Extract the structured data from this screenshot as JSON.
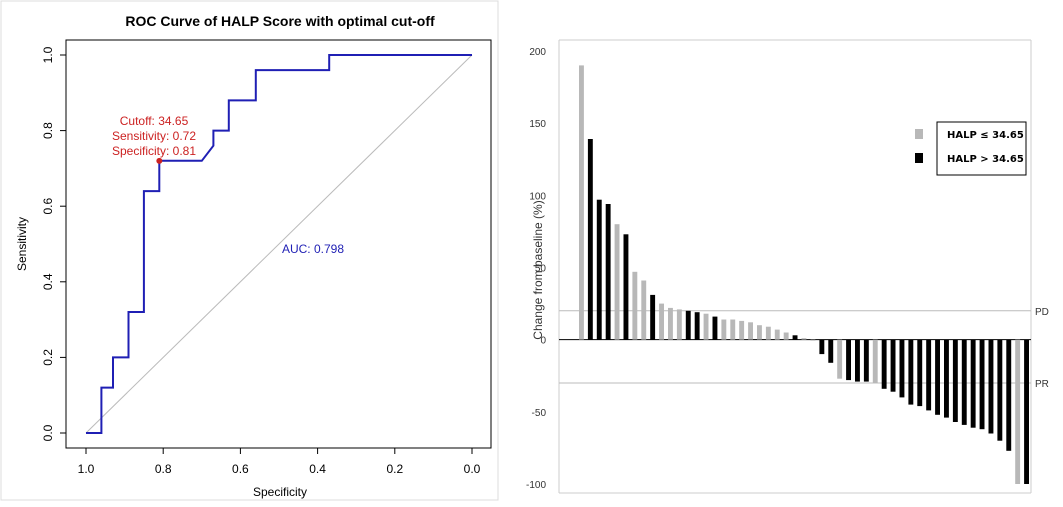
{
  "chart_data": [
    {
      "type": "line",
      "title": "ROC Curve of HALP Score with optimal cut-off",
      "xlabel": "Specificity",
      "ylabel": "Sensitivity",
      "xlim": [
        1.0,
        0.0
      ],
      "ylim": [
        0.0,
        1.0
      ],
      "x_reversed": true,
      "x_ticks": [
        "1.0",
        "0.8",
        "0.6",
        "0.4",
        "0.2",
        "0.0"
      ],
      "y_ticks": [
        "0.0",
        "0.2",
        "0.4",
        "0.6",
        "0.8",
        "1.0"
      ],
      "grid": false,
      "series": [
        {
          "color": "#1f1fb4",
          "specificity": [
            1.0,
            0.96,
            0.96,
            0.93,
            0.93,
            0.89,
            0.89,
            0.85,
            0.85,
            0.81,
            0.81,
            0.7,
            0.67,
            0.67,
            0.63,
            0.63,
            0.56,
            0.56,
            0.37,
            0.37,
            0.0
          ],
          "sensitivity": [
            0.0,
            0.0,
            0.12,
            0.12,
            0.2,
            0.2,
            0.32,
            0.32,
            0.64,
            0.64,
            0.72,
            0.72,
            0.76,
            0.8,
            0.8,
            0.88,
            0.88,
            0.96,
            0.96,
            1.0,
            1.0
          ]
        }
      ],
      "reference_line": {
        "from": [
          1.0,
          0.0
        ],
        "to": [
          0.0,
          1.0
        ],
        "color": "#bbbbbb"
      },
      "optimal_point": {
        "specificity": 0.81,
        "sensitivity": 0.72,
        "color": "#cc2222"
      },
      "annotations": {
        "cutoff": "Cutoff: 34.65",
        "sensitivity": "Sensitivity: 0.72",
        "specificity": "Specificity: 0.81",
        "auc": "AUC: 0.798"
      }
    },
    {
      "type": "bar",
      "title": "",
      "xlabel": "",
      "ylabel": "Change from baseline (%)",
      "ylim": [
        -100,
        200
      ],
      "y_ticks": [
        200,
        150,
        100,
        50,
        0,
        -50,
        -100
      ],
      "grid": false,
      "legend": {
        "placement": "top-right",
        "entries": [
          {
            "label": "HALP ≤ 34.65",
            "color": "#b8b8b8"
          },
          {
            "label": "HALP > 34.65",
            "color": "#000000"
          }
        ]
      },
      "reference_lines": [
        {
          "label": "PD",
          "value": 20
        },
        {
          "label": "PR",
          "value": -30
        }
      ],
      "bars": [
        {
          "value": 190,
          "group": "low"
        },
        {
          "value": 139,
          "group": "high"
        },
        {
          "value": 97,
          "group": "high"
        },
        {
          "value": 94,
          "group": "high"
        },
        {
          "value": 80,
          "group": "low"
        },
        {
          "value": 73,
          "group": "high"
        },
        {
          "value": 47,
          "group": "low"
        },
        {
          "value": 41,
          "group": "low"
        },
        {
          "value": 31,
          "group": "high"
        },
        {
          "value": 25,
          "group": "low"
        },
        {
          "value": 22,
          "group": "low"
        },
        {
          "value": 21,
          "group": "low"
        },
        {
          "value": 20,
          "group": "high"
        },
        {
          "value": 19,
          "group": "high"
        },
        {
          "value": 18,
          "group": "low"
        },
        {
          "value": 16,
          "group": "high"
        },
        {
          "value": 14,
          "group": "low"
        },
        {
          "value": 14,
          "group": "low"
        },
        {
          "value": 13,
          "group": "low"
        },
        {
          "value": 12,
          "group": "low"
        },
        {
          "value": 10,
          "group": "low"
        },
        {
          "value": 9,
          "group": "low"
        },
        {
          "value": 7,
          "group": "low"
        },
        {
          "value": 5,
          "group": "low"
        },
        {
          "value": 3,
          "group": "high"
        },
        {
          "value": 1,
          "group": "low"
        },
        {
          "value": 0,
          "group": "low"
        },
        {
          "value": -10,
          "group": "high"
        },
        {
          "value": -16,
          "group": "high"
        },
        {
          "value": -27,
          "group": "low"
        },
        {
          "value": -28,
          "group": "high"
        },
        {
          "value": -29,
          "group": "high"
        },
        {
          "value": -29,
          "group": "high"
        },
        {
          "value": -30,
          "group": "low"
        },
        {
          "value": -34,
          "group": "high"
        },
        {
          "value": -36,
          "group": "high"
        },
        {
          "value": -40,
          "group": "high"
        },
        {
          "value": -45,
          "group": "high"
        },
        {
          "value": -46,
          "group": "high"
        },
        {
          "value": -49,
          "group": "high"
        },
        {
          "value": -52,
          "group": "high"
        },
        {
          "value": -54,
          "group": "high"
        },
        {
          "value": -57,
          "group": "high"
        },
        {
          "value": -59,
          "group": "high"
        },
        {
          "value": -61,
          "group": "high"
        },
        {
          "value": -62,
          "group": "high"
        },
        {
          "value": -65,
          "group": "high"
        },
        {
          "value": -70,
          "group": "high"
        },
        {
          "value": -77,
          "group": "high"
        },
        {
          "value": -100,
          "group": "low"
        },
        {
          "value": -100,
          "group": "high"
        }
      ]
    }
  ]
}
